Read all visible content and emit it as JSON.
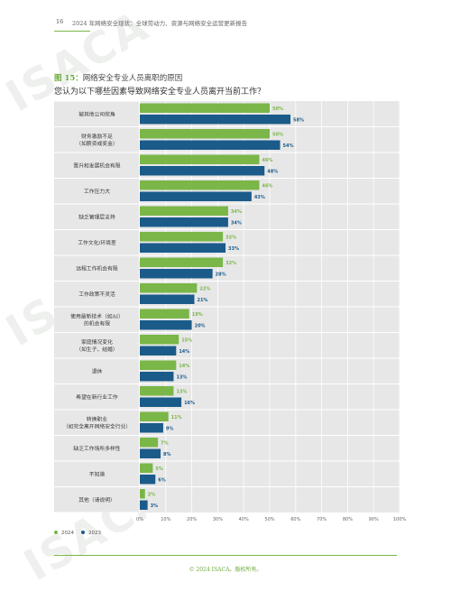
{
  "header": {
    "page_number": "16",
    "title": "2024 年网络安全现状：全球劳动力、资源与网络安全运营更新报告"
  },
  "figure": {
    "label": "图 15：",
    "title": "网络安全专业人员离职的原因",
    "question": "您认为以下哪些因素导致网络安全专业人员离开当前工作？"
  },
  "watermark": "ISACA",
  "colors": {
    "s2024": "#7ab648",
    "s2023": "#1b5b8a",
    "band": "#e7e7e7",
    "axis_text": "#666666"
  },
  "chart_data": {
    "type": "bar",
    "orientation": "horizontal",
    "categories": [
      "被其他公司挖角",
      "财务激励不足\n（如薪资或奖金）",
      "晋升和发展机会有限",
      "工作压力大",
      "缺乏管理层支持",
      "工作文化/环境差",
      "远程工作机会有限",
      "工作政策不灵活",
      "使用最新技术（如AI）\n的机会有限",
      "家庭情况变化\n（如生子、结婚）",
      "退休",
      "希望在新行业工作",
      "转换职业\n（如完全离开网络安全行业）",
      "缺乏工作场所多样性",
      "不知道",
      "其他（请说明）"
    ],
    "series": [
      {
        "name": "2024",
        "values": [
          50,
          50,
          46,
          46,
          34,
          32,
          32,
          22,
          19,
          15,
          14,
          13,
          11,
          7,
          5,
          2
        ],
        "labels": [
          "50%",
          "50%",
          "46%",
          "46%",
          "34%",
          "32%",
          "32%",
          "22%",
          "19%",
          "15%",
          "14%",
          "13%",
          "11%",
          "7%",
          "5%",
          "2%"
        ]
      },
      {
        "name": "2023",
        "values": [
          58,
          54,
          48,
          43,
          34,
          33,
          28,
          21,
          20,
          14,
          13,
          16,
          9,
          8,
          6,
          3
        ],
        "labels": [
          "58%",
          "54%",
          "48%",
          "43%",
          "34%",
          "33%",
          "28%",
          "21%",
          "20%",
          "14%",
          "13%",
          "16%",
          "9%",
          "8%",
          "6%",
          "3%"
        ]
      }
    ],
    "xlim": [
      0,
      100
    ],
    "xticks": [
      0,
      10,
      20,
      30,
      40,
      50,
      60,
      70,
      80,
      90,
      100
    ],
    "xtick_labels": [
      "0%",
      "10%",
      "20%",
      "30%",
      "40%",
      "50%",
      "60%",
      "70%",
      "80%",
      "90%",
      "100%"
    ],
    "grid": true,
    "legend_position": "bottom-left"
  },
  "footer": {
    "copyright": "© 2024 ISACA。版权所有。"
  }
}
